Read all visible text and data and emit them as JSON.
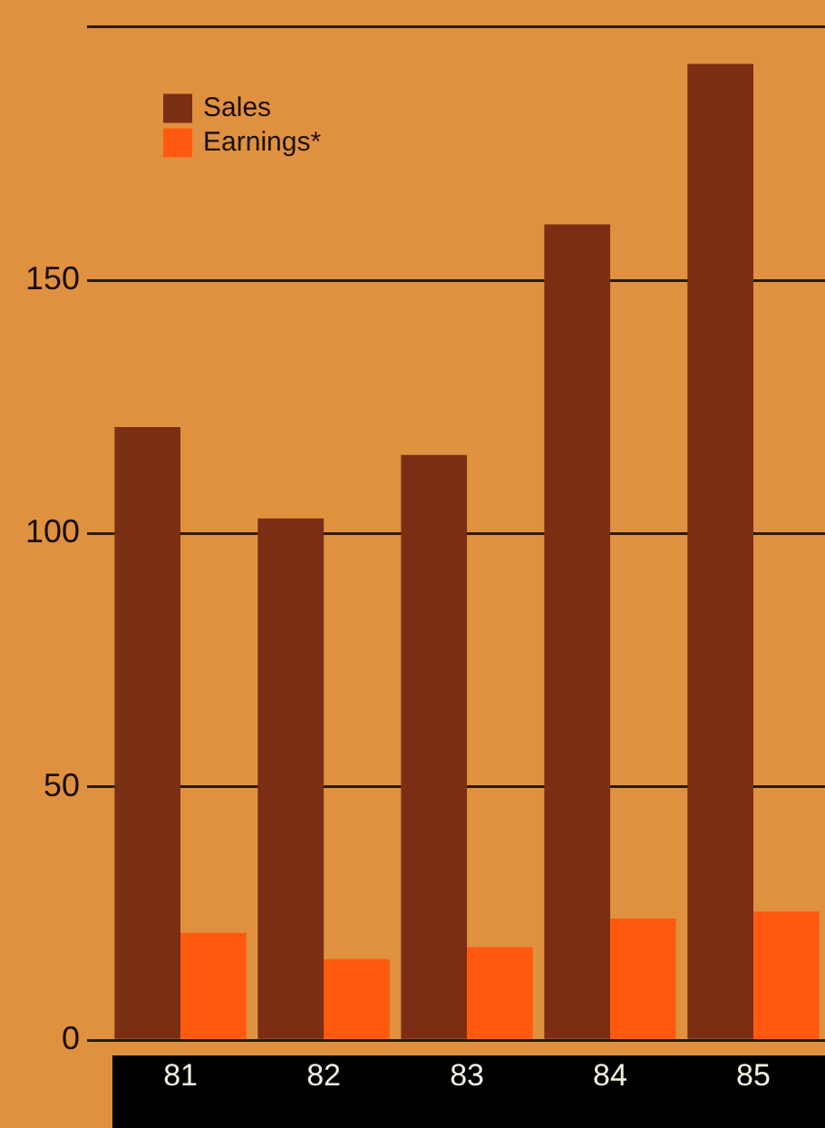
{
  "chart_data": {
    "type": "bar",
    "categories": [
      "81",
      "82",
      "83",
      "84",
      "85"
    ],
    "series": [
      {
        "name": "Sales",
        "color": "#7a2e14",
        "values": [
          121,
          103,
          115.5,
          161,
          192.7
        ]
      },
      {
        "name": "Earnings*",
        "color": "#ff5a10",
        "values": [
          21.2,
          16,
          18.4,
          24,
          25.4
        ]
      }
    ],
    "ylim": [
      0,
      200
    ],
    "yticks": [
      0,
      50,
      100,
      150,
      {
        "value": 200,
        "label": null
      }
    ],
    "grid": "y",
    "legend": "top left"
  }
}
